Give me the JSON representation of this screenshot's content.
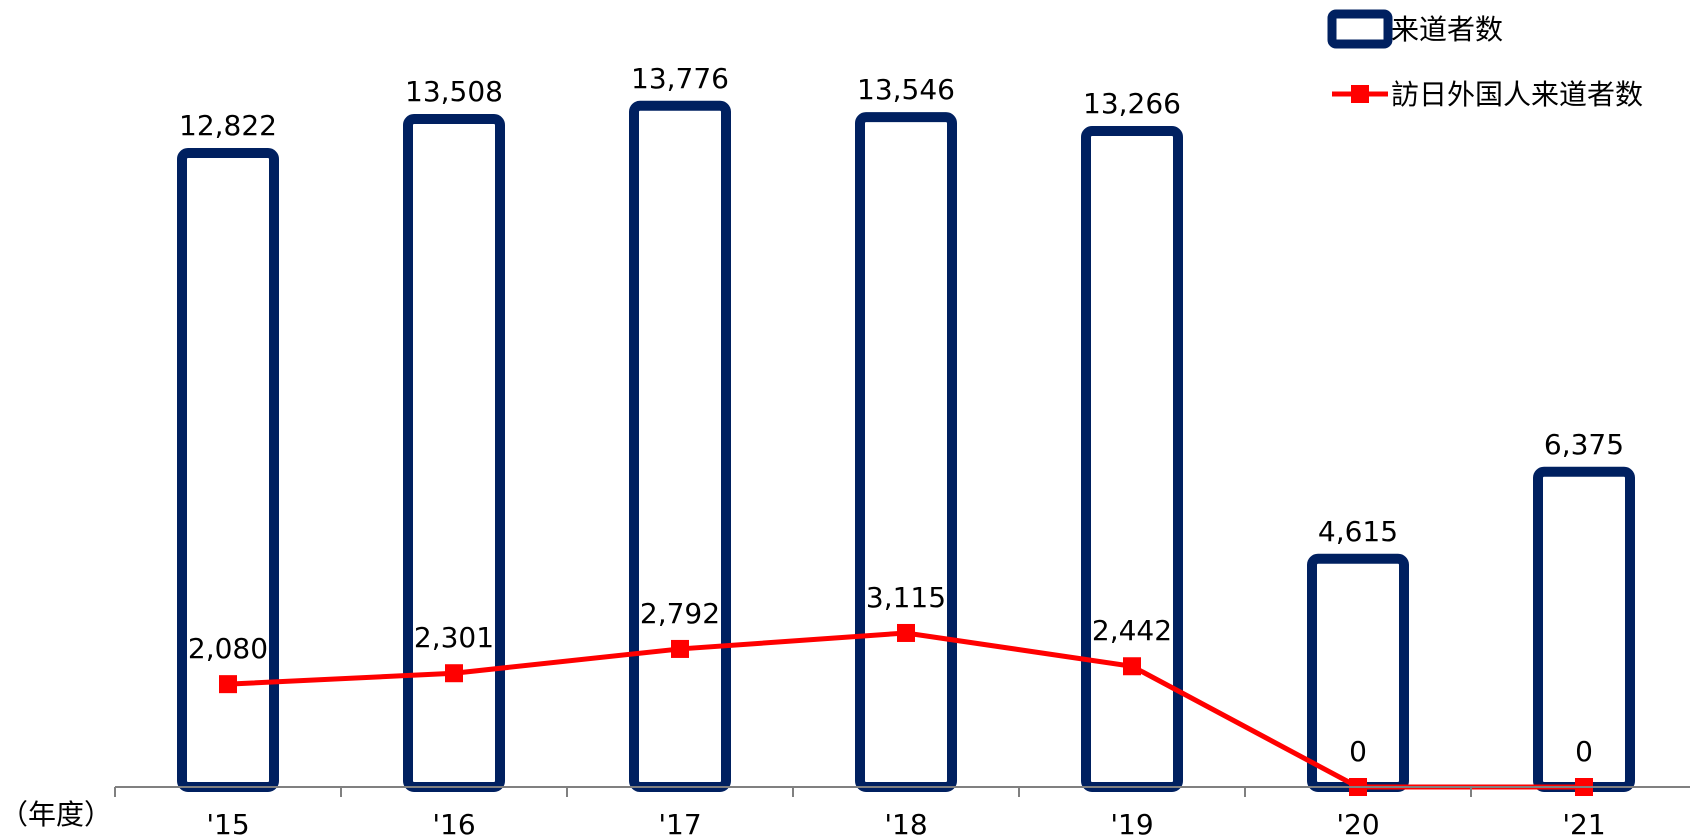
{
  "chart_data": {
    "type": "bar",
    "categories": [
      "'15",
      "'16",
      "'17",
      "'18",
      "'19",
      "'20",
      "'21"
    ],
    "series": [
      {
        "name": "来道者数",
        "type": "bar",
        "values": [
          12822,
          13508,
          13776,
          13546,
          13266,
          4615,
          6375
        ],
        "labels": [
          "12,822",
          "13,508",
          "13,776",
          "13,546",
          "13,266",
          "4,615",
          "6,375"
        ],
        "color": "#002060"
      },
      {
        "name": "訪日外国人来道者数",
        "type": "line",
        "values": [
          2080,
          2301,
          2792,
          3115,
          2442,
          0,
          0
        ],
        "labels": [
          "2,080",
          "2,301",
          "2,792",
          "3,115",
          "2,442",
          "0",
          "0"
        ],
        "color": "#ff0000"
      }
    ],
    "x_unit_label": "（年度）",
    "ylim": [
      0,
      14500
    ],
    "legend": "top-right",
    "grid": false
  }
}
